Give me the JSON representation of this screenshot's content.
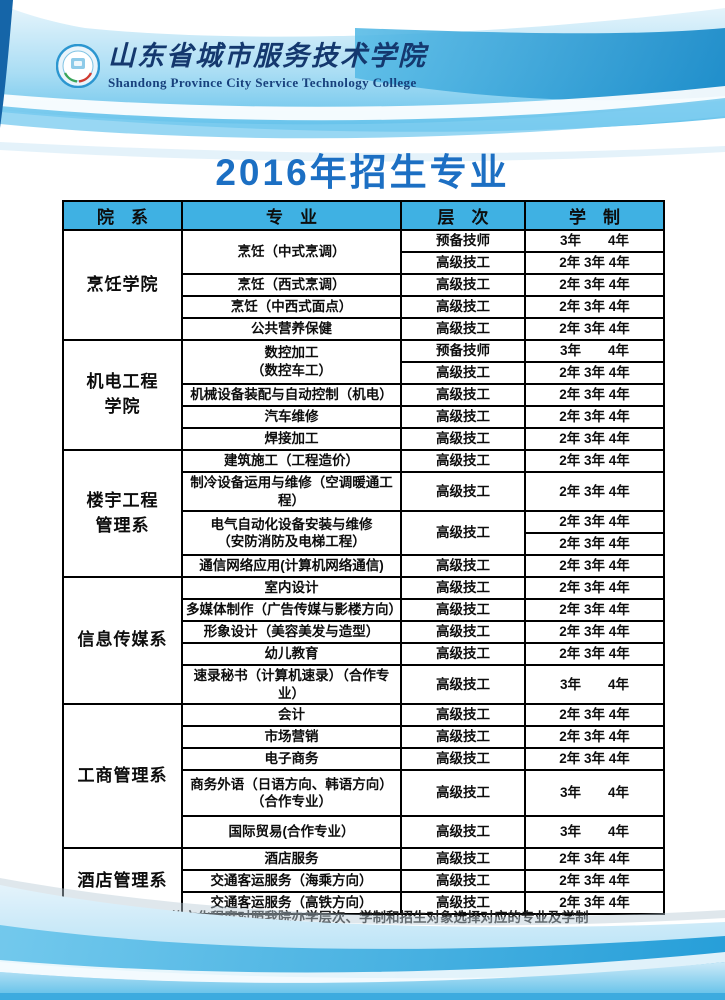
{
  "header": {
    "college_name_cn": "山东省城市服务技术学院",
    "college_name_en": "Shandong Province City Service Technology College",
    "logo_icon": "college-emblem-icon"
  },
  "title": "2016年招生专业",
  "note": "备注：请根据学生的文化程度对照我院办学层次、学制和招生对象选择对应的专业及学制",
  "colors": {
    "table_header_bg": "#3fb1e3",
    "title_blue": "#1c6fc3",
    "brand_navy": "#14386e",
    "wave_blue": "#2fa5dd"
  },
  "table": {
    "headers": [
      "院　系",
      "专　业",
      "层　次",
      "学　制"
    ],
    "departments": [
      {
        "name": "烹饪学院",
        "rows": [
          {
            "major": "烹饪（中式烹调）",
            "major_rowspan": 2,
            "level": "预备技师",
            "years": "3年　　4年"
          },
          {
            "level": "高级技工",
            "years": "2年 3年 4年"
          },
          {
            "major": "烹饪（西式烹调）",
            "level": "高级技工",
            "years": "2年 3年 4年"
          },
          {
            "major": "烹饪（中西式面点）",
            "level": "高级技工",
            "years": "2年 3年 4年"
          },
          {
            "major": "公共营养保健",
            "level": "高级技工",
            "years": "2年 3年 4年"
          }
        ]
      },
      {
        "name": "机电工程\n学院",
        "rows": [
          {
            "major": "数控加工\n（数控车工）",
            "major_rowspan": 2,
            "level": "预备技师",
            "years": "3年　　4年"
          },
          {
            "level": "高级技工",
            "years": "2年 3年 4年"
          },
          {
            "major": "机械设备装配与自动控制（机电）",
            "level": "高级技工",
            "years": "2年 3年 4年"
          },
          {
            "major": "汽车维修",
            "level": "高级技工",
            "years": "2年 3年 4年"
          },
          {
            "major": "焊接加工",
            "level": "高级技工",
            "years": "2年 3年 4年"
          }
        ]
      },
      {
        "name": "楼宇工程\n管理系",
        "rows": [
          {
            "major": "建筑施工（工程造价）",
            "level": "高级技工",
            "years": "2年 3年 4年"
          },
          {
            "major": "制冷设备运用与维修（空调暖通工程）",
            "level": "高级技工",
            "years": "2年 3年 4年"
          },
          {
            "major": "电气自动化设备安装与维修\n（安防消防及电梯工程）",
            "major_rowspan": 2,
            "level": "高级技工",
            "level_rowspan": 2,
            "years": "2年 3年 4年"
          },
          {
            "years": "2年 3年 4年"
          },
          {
            "major": "通信网络应用(计算机网络通信)",
            "level": "高级技工",
            "years": "2年 3年 4年"
          }
        ]
      },
      {
        "name": "信息传媒系",
        "rows": [
          {
            "major": "室内设计",
            "level": "高级技工",
            "years": "2年 3年 4年"
          },
          {
            "major": "多媒体制作（广告传媒与影楼方向）",
            "level": "高级技工",
            "years": "2年 3年 4年"
          },
          {
            "major": "形象设计（美容美发与造型）",
            "level": "高级技工",
            "years": "2年 3年 4年"
          },
          {
            "major": "幼儿教育",
            "level": "高级技工",
            "years": "2年 3年 4年"
          },
          {
            "major": "速录秘书（计算机速录）（合作专业）",
            "level": "高级技工",
            "years": "3年　　4年"
          }
        ]
      },
      {
        "name": "工商管理系",
        "rows": [
          {
            "major": "会计",
            "level": "高级技工",
            "years": "2年 3年 4年"
          },
          {
            "major": "市场营销",
            "level": "高级技工",
            "years": "2年 3年 4年"
          },
          {
            "major": "电子商务",
            "level": "高级技工",
            "years": "2年 3年 4年"
          },
          {
            "major": "商务外语（日语方向、韩语方向）\n（合作专业）",
            "level": "高级技工",
            "years": "3年　　4年",
            "h": 46
          },
          {
            "major": "国际贸易(合作专业）",
            "level": "高级技工",
            "years": "3年　　4年",
            "h": 32
          }
        ]
      },
      {
        "name": "酒店管理系",
        "rows": [
          {
            "major": "酒店服务",
            "level": "高级技工",
            "years": "2年 3年 4年"
          },
          {
            "major": "交通客运服务（海乘方向）",
            "level": "高级技工",
            "years": "2年 3年 4年"
          },
          {
            "major": "交通客运服务（高铁方向）",
            "level": "高级技工",
            "years": "2年 3年 4年"
          }
        ]
      }
    ]
  }
}
